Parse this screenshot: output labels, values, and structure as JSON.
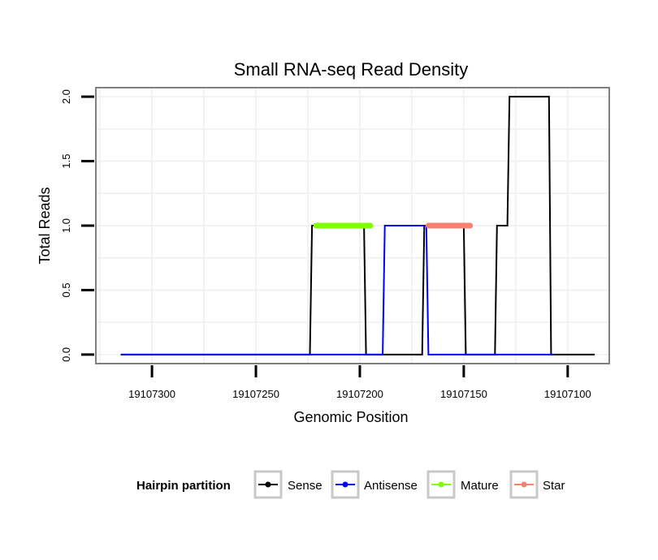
{
  "chart_data": {
    "type": "line",
    "title": "Small RNA-seq Read Density",
    "xlabel": "Genomic Position",
    "ylabel": "Total Reads",
    "x_reversed": true,
    "xlim": [
      19107327,
      19107080
    ],
    "ylim": [
      -0.07,
      2.07
    ],
    "x_ticks": [
      19107300,
      19107250,
      19107200,
      19107150,
      19107100
    ],
    "x_tick_labels": [
      "19107300",
      "19107250",
      "19107200",
      "19107150",
      "19107100"
    ],
    "y_ticks": [
      0,
      0.5,
      1,
      1.5,
      2
    ],
    "y_tick_labels": [
      "0.0",
      "0.5",
      "1.0",
      "1.5",
      "2.0"
    ],
    "grid": true,
    "series": [
      {
        "name": "Sense",
        "color": "#000000",
        "points": [
          [
            19107315,
            0
          ],
          [
            19107224,
            0
          ],
          [
            19107223,
            1
          ],
          [
            19107198,
            1
          ],
          [
            19107197,
            0
          ],
          [
            19107170,
            0
          ],
          [
            19107169,
            1
          ],
          [
            19107150,
            1
          ],
          [
            19107149,
            0
          ],
          [
            19107135,
            0
          ],
          [
            19107134,
            1
          ],
          [
            19107129,
            1
          ],
          [
            19107128,
            2
          ],
          [
            19107109,
            2
          ],
          [
            19107108,
            0
          ],
          [
            19107087,
            0
          ]
        ]
      },
      {
        "name": "Antisense",
        "color": "#0000ff",
        "points": [
          [
            19107315,
            0
          ],
          [
            19107189,
            0
          ],
          [
            19107188,
            1
          ],
          [
            19107168,
            1
          ],
          [
            19107167,
            0
          ],
          [
            19107107,
            0
          ]
        ]
      },
      {
        "name": "Mature",
        "color": "#7fff00",
        "points": [
          [
            19107221,
            1
          ],
          [
            19107195,
            1
          ]
        ]
      },
      {
        "name": "Star",
        "color": "#fa8072",
        "points": [
          [
            19107167,
            1
          ],
          [
            19107147,
            1
          ]
        ]
      }
    ],
    "legend": {
      "title": "Hairpin partition",
      "position": "bottom",
      "entries": [
        "Sense",
        "Antisense",
        "Mature",
        "Star"
      ]
    }
  }
}
